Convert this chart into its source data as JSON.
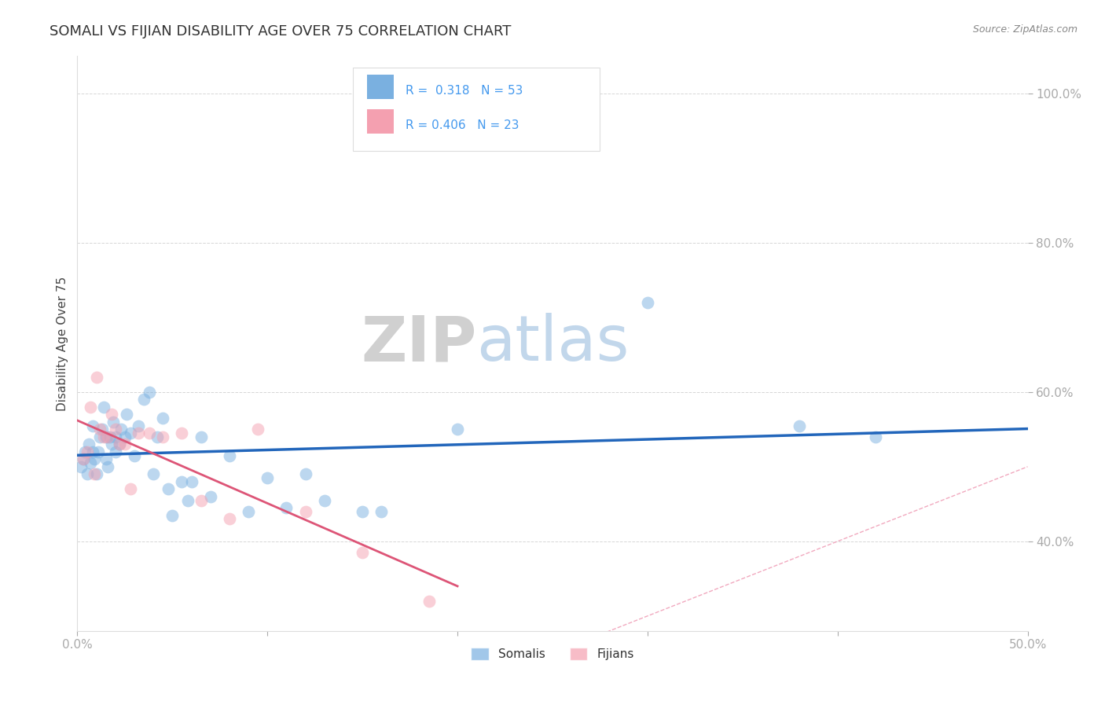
{
  "title": "SOMALI VS FIJIAN DISABILITY AGE OVER 75 CORRELATION CHART",
  "source": "Source: ZipAtlas.com",
  "ylabel_label": "Disability Age Over 75",
  "x_min": 0.0,
  "x_max": 0.5,
  "y_min": 0.28,
  "y_max": 1.05,
  "x_ticks": [
    0.0,
    0.1,
    0.2,
    0.3,
    0.4,
    0.5
  ],
  "x_tick_labels": [
    "0.0%",
    "",
    "",
    "",
    "",
    "50.0%"
  ],
  "y_ticks": [
    0.4,
    0.6,
    0.8,
    1.0
  ],
  "y_tick_labels": [
    "40.0%",
    "60.0%",
    "80.0%",
    "100.0%"
  ],
  "somali_color": "#7ab0e0",
  "fijian_color": "#f4a0b0",
  "somali_line_color": "#2266bb",
  "fijian_line_color": "#dd5577",
  "diagonal_color": "#f0a0b8",
  "R_somali": "0.318",
  "N_somali": "53",
  "R_fijian": "0.406",
  "N_fijian": "23",
  "watermark_zip": "ZIP",
  "watermark_atlas": "atlas",
  "somali_x": [
    0.002,
    0.003,
    0.004,
    0.005,
    0.006,
    0.007,
    0.008,
    0.008,
    0.009,
    0.01,
    0.011,
    0.012,
    0.013,
    0.014,
    0.015,
    0.015,
    0.016,
    0.017,
    0.018,
    0.019,
    0.02,
    0.02,
    0.022,
    0.023,
    0.025,
    0.026,
    0.028,
    0.03,
    0.032,
    0.035,
    0.038,
    0.04,
    0.042,
    0.045,
    0.048,
    0.05,
    0.055,
    0.058,
    0.06,
    0.065,
    0.07,
    0.08,
    0.09,
    0.1,
    0.11,
    0.12,
    0.13,
    0.15,
    0.16,
    0.2,
    0.3,
    0.38,
    0.42
  ],
  "somali_y": [
    0.5,
    0.51,
    0.52,
    0.49,
    0.53,
    0.505,
    0.52,
    0.555,
    0.51,
    0.49,
    0.52,
    0.54,
    0.55,
    0.58,
    0.51,
    0.54,
    0.5,
    0.54,
    0.53,
    0.56,
    0.52,
    0.54,
    0.53,
    0.55,
    0.54,
    0.57,
    0.545,
    0.515,
    0.555,
    0.59,
    0.6,
    0.49,
    0.54,
    0.565,
    0.47,
    0.435,
    0.48,
    0.455,
    0.48,
    0.54,
    0.46,
    0.515,
    0.44,
    0.485,
    0.445,
    0.49,
    0.455,
    0.44,
    0.44,
    0.55,
    0.72,
    0.555,
    0.54
  ],
  "fijian_x": [
    0.003,
    0.005,
    0.007,
    0.009,
    0.01,
    0.012,
    0.014,
    0.016,
    0.018,
    0.02,
    0.022,
    0.025,
    0.028,
    0.032,
    0.038,
    0.045,
    0.055,
    0.065,
    0.08,
    0.095,
    0.12,
    0.15,
    0.185
  ],
  "fijian_y": [
    0.51,
    0.52,
    0.58,
    0.49,
    0.62,
    0.55,
    0.54,
    0.54,
    0.57,
    0.55,
    0.53,
    0.53,
    0.47,
    0.545,
    0.545,
    0.54,
    0.545,
    0.455,
    0.43,
    0.55,
    0.44,
    0.385,
    0.32
  ]
}
